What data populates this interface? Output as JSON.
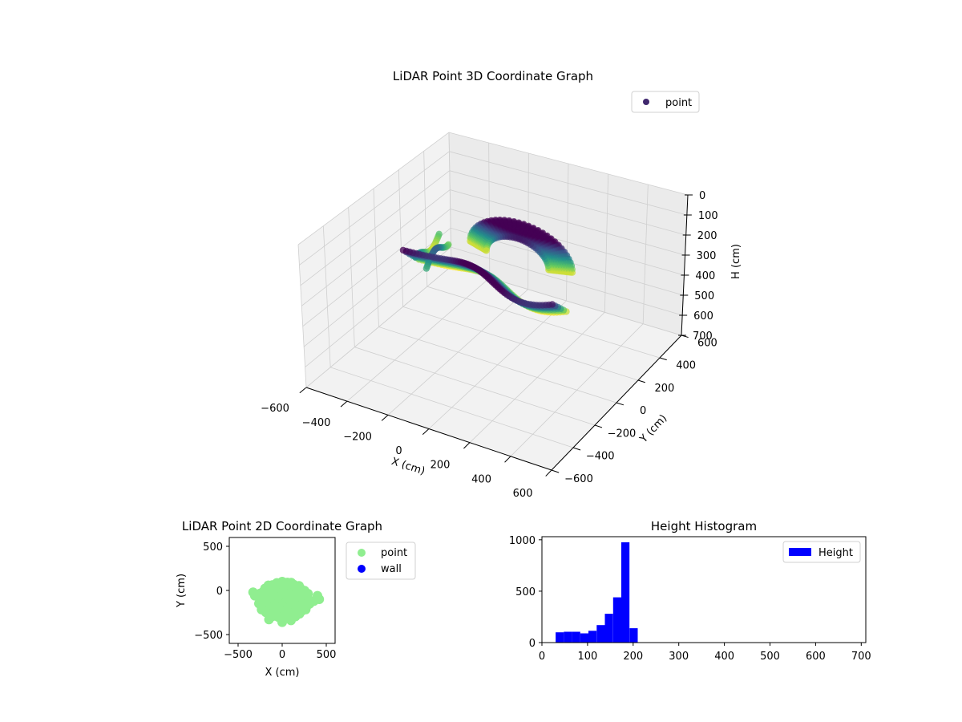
{
  "chart_data": [
    {
      "type": "scatter3d",
      "title": "LiDAR Point 3D Coordinate Graph",
      "xlabel": "X (cm)",
      "ylabel": "Y (cm)",
      "zlabel": "H (cm)",
      "xlim": [
        -600,
        600
      ],
      "ylim": [
        -600,
        600
      ],
      "zlim": [
        0,
        700
      ],
      "z_inverted": true,
      "x_ticks": [
        -600,
        -400,
        -200,
        0,
        200,
        400,
        600
      ],
      "y_ticks": [
        -600,
        -400,
        -200,
        0,
        200,
        400,
        600
      ],
      "z_ticks": [
        0,
        100,
        200,
        300,
        400,
        500,
        600,
        700
      ],
      "colormap": "viridis",
      "legend": {
        "entries": [
          "point"
        ],
        "placement": "upper-right"
      },
      "grid": true
    },
    {
      "type": "scatter",
      "title": "LiDAR Point 2D Coordinate Graph",
      "xlabel": "X (cm)",
      "ylabel": "Y (cm)",
      "xlim": [
        -600,
        600
      ],
      "ylim": [
        -600,
        600
      ],
      "x_ticks": [
        -500,
        0,
        500
      ],
      "y_ticks": [
        -500,
        0,
        500
      ],
      "series": [
        {
          "name": "point",
          "color": "#90ee90",
          "region": "cluster centred near (0, -100), X from -330 to 430, Y from -360 to 110"
        },
        {
          "name": "wall",
          "color": "#0000ff",
          "points": []
        }
      ],
      "legend": {
        "placement": "outside-right"
      },
      "grid": false
    },
    {
      "type": "bar",
      "title": "Height Histogram",
      "xlabel": "",
      "ylabel": "",
      "color": "#0000ff",
      "legend": {
        "entries": [
          "Height"
        ],
        "placement": "upper-right"
      },
      "xlim": [
        0,
        710
      ],
      "ylim": [
        0,
        1030
      ],
      "x_ticks": [
        0,
        100,
        200,
        300,
        400,
        500,
        600,
        700
      ],
      "y_ticks": [
        0,
        500,
        1000
      ],
      "bins": [
        {
          "x0": 30,
          "x1": 48,
          "count": 100
        },
        {
          "x0": 48,
          "x1": 66,
          "count": 105
        },
        {
          "x0": 66,
          "x1": 84,
          "count": 105
        },
        {
          "x0": 84,
          "x1": 102,
          "count": 90
        },
        {
          "x0": 102,
          "x1": 120,
          "count": 115
        },
        {
          "x0": 120,
          "x1": 138,
          "count": 170
        },
        {
          "x0": 138,
          "x1": 156,
          "count": 280
        },
        {
          "x0": 156,
          "x1": 174,
          "count": 440
        },
        {
          "x0": 174,
          "x1": 192,
          "count": 975
        },
        {
          "x0": 192,
          "x1": 210,
          "count": 140
        }
      ]
    }
  ]
}
